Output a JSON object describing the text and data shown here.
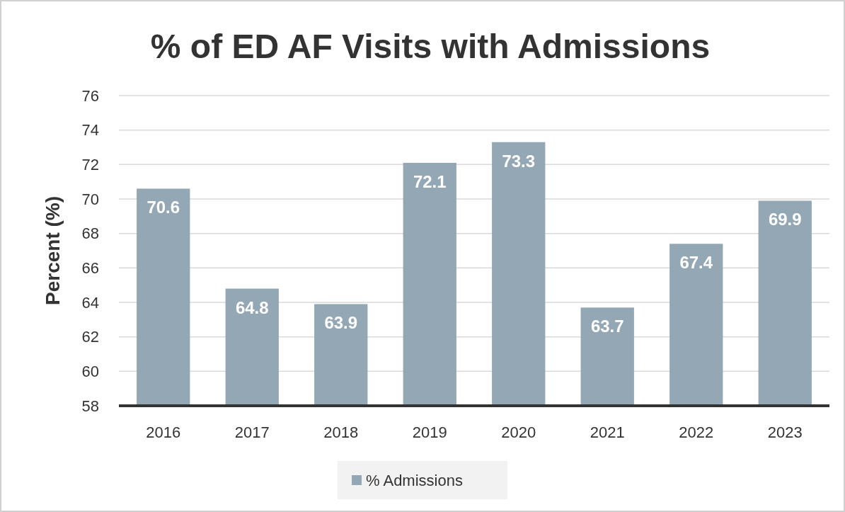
{
  "chart_data": {
    "type": "bar",
    "title": "% of ED AF Visits with Admissions",
    "ylabel": "Percent (%)",
    "categories": [
      "2016",
      "2017",
      "2018",
      "2019",
      "2020",
      "2021",
      "2022",
      "2023"
    ],
    "series": [
      {
        "name": "% Admissions",
        "color": "#94a7b5",
        "values": [
          70.6,
          64.8,
          63.9,
          72.1,
          73.3,
          63.7,
          67.4,
          69.9
        ]
      }
    ],
    "ylim": [
      58,
      76
    ],
    "yticks": [
      58,
      60,
      62,
      64,
      66,
      68,
      70,
      72,
      74,
      76
    ],
    "grid": "y",
    "legend": "bottom",
    "data_labels": true
  }
}
